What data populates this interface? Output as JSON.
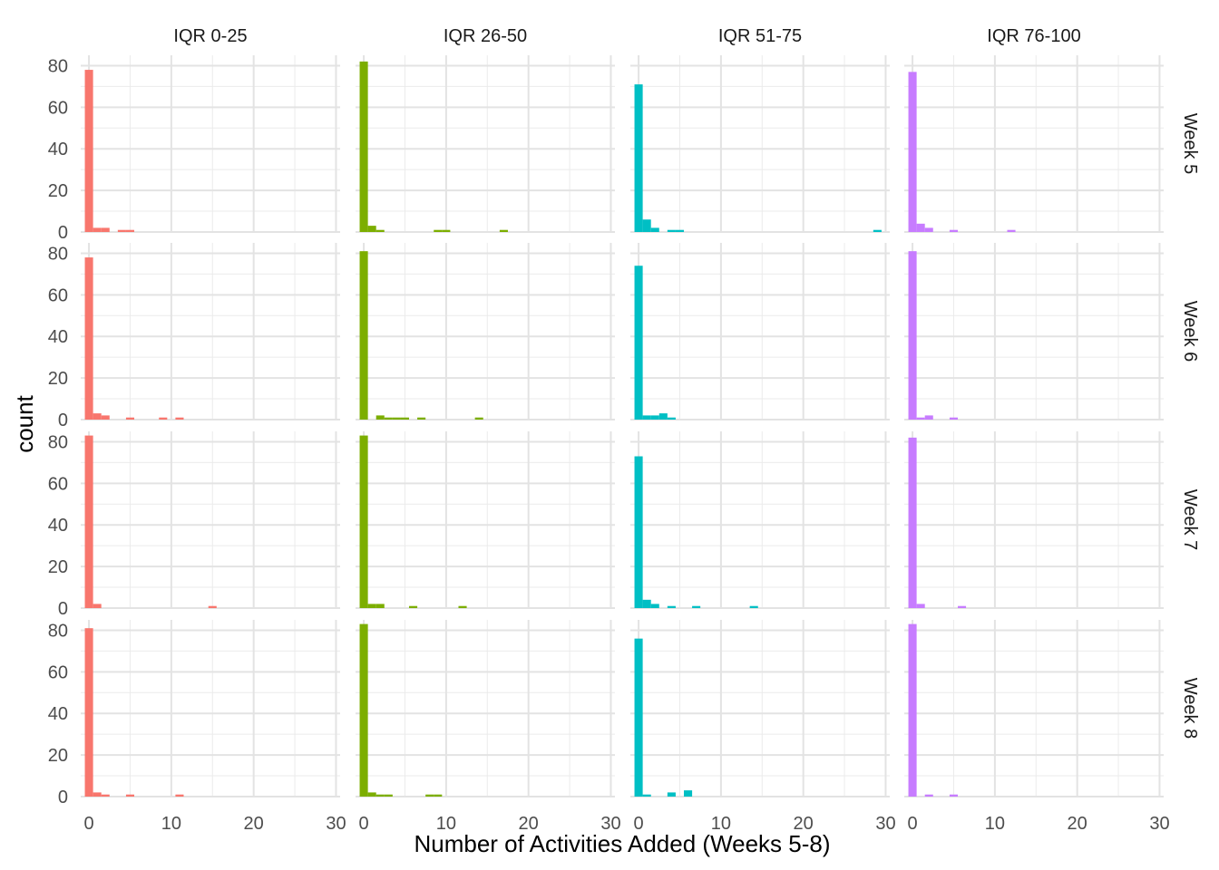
{
  "chart_data": {
    "type": "bar",
    "subtype": "faceted histogram",
    "xlabel": "Number of Activities Added (Weeks 5-8)",
    "ylabel": "count",
    "xlim": [
      -1,
      30.5
    ],
    "ylim": [
      0,
      85
    ],
    "x_ticks": [
      0,
      10,
      20,
      30
    ],
    "y_ticks": [
      0,
      20,
      40,
      60,
      80
    ],
    "bin_width": 1,
    "grid": true,
    "legend": "none",
    "col_labels": [
      "IQR 0-25",
      "IQR 26-50",
      "IQR 51-75",
      "IQR 76-100"
    ],
    "row_labels": [
      "Week 5",
      "Week 6",
      "Week 7",
      "Week 8"
    ],
    "colors": [
      "#F8766D",
      "#7CAE00",
      "#00BFC4",
      "#C77CFF"
    ],
    "panels": [
      [
        {
          "bins": [
            [
              0,
              78
            ],
            [
              1,
              2
            ],
            [
              2,
              2
            ],
            [
              4,
              1
            ],
            [
              5,
              1
            ]
          ]
        },
        {
          "bins": [
            [
              0,
              82
            ],
            [
              1,
              3
            ],
            [
              2,
              1
            ],
            [
              9,
              1
            ],
            [
              10,
              1
            ],
            [
              17,
              1
            ]
          ]
        },
        {
          "bins": [
            [
              0,
              71
            ],
            [
              1,
              6
            ],
            [
              2,
              2
            ],
            [
              4,
              1
            ],
            [
              5,
              1
            ],
            [
              29,
              1
            ]
          ]
        },
        {
          "bins": [
            [
              0,
              77
            ],
            [
              1,
              4
            ],
            [
              2,
              2
            ],
            [
              5,
              1
            ],
            [
              12,
              1
            ]
          ]
        }
      ],
      [
        {
          "bins": [
            [
              0,
              78
            ],
            [
              1,
              3
            ],
            [
              2,
              2
            ],
            [
              5,
              1
            ],
            [
              9,
              1
            ],
            [
              11,
              1
            ]
          ]
        },
        {
          "bins": [
            [
              0,
              81
            ],
            [
              2,
              2
            ],
            [
              3,
              1
            ],
            [
              4,
              1
            ],
            [
              5,
              1
            ],
            [
              7,
              1
            ],
            [
              14,
              1
            ]
          ]
        },
        {
          "bins": [
            [
              0,
              74
            ],
            [
              1,
              2
            ],
            [
              2,
              2
            ],
            [
              3,
              3
            ],
            [
              4,
              1
            ]
          ]
        },
        {
          "bins": [
            [
              0,
              81
            ],
            [
              1,
              1
            ],
            [
              2,
              2
            ],
            [
              5,
              1
            ]
          ]
        }
      ],
      [
        {
          "bins": [
            [
              0,
              83
            ],
            [
              1,
              2
            ],
            [
              15,
              1
            ]
          ]
        },
        {
          "bins": [
            [
              0,
              83
            ],
            [
              1,
              2
            ],
            [
              2,
              2
            ],
            [
              6,
              1
            ],
            [
              12,
              1
            ]
          ]
        },
        {
          "bins": [
            [
              0,
              73
            ],
            [
              1,
              4
            ],
            [
              2,
              2
            ],
            [
              4,
              1
            ],
            [
              7,
              1
            ],
            [
              14,
              1
            ]
          ]
        },
        {
          "bins": [
            [
              0,
              82
            ],
            [
              1,
              2
            ],
            [
              6,
              1
            ]
          ]
        }
      ],
      [
        {
          "bins": [
            [
              0,
              81
            ],
            [
              1,
              2
            ],
            [
              2,
              1
            ],
            [
              5,
              1
            ],
            [
              11,
              1
            ]
          ]
        },
        {
          "bins": [
            [
              0,
              83
            ],
            [
              1,
              2
            ],
            [
              2,
              1
            ],
            [
              3,
              1
            ],
            [
              8,
              1
            ],
            [
              9,
              1
            ]
          ]
        },
        {
          "bins": [
            [
              0,
              76
            ],
            [
              1,
              1
            ],
            [
              4,
              2
            ],
            [
              6,
              3
            ]
          ]
        },
        {
          "bins": [
            [
              0,
              83
            ],
            [
              2,
              1
            ],
            [
              5,
              1
            ]
          ]
        }
      ]
    ]
  }
}
